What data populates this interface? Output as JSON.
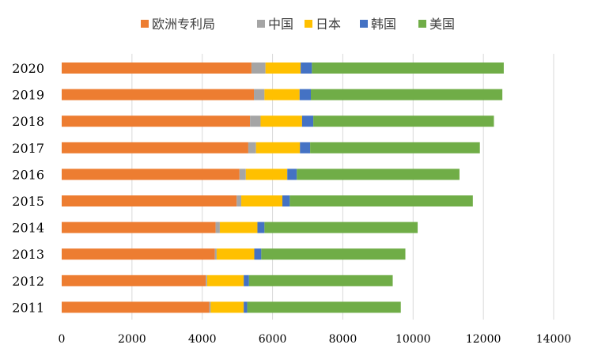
{
  "chart_data": {
    "type": "bar",
    "orientation": "horizontal",
    "stacked": true,
    "categories": [
      "2020",
      "2019",
      "2018",
      "2017",
      "2016",
      "2015",
      "2014",
      "2013",
      "2012",
      "2011"
    ],
    "series": [
      {
        "name": "欧洲专利局",
        "color": "#ed7d31",
        "values": [
          5400,
          5470,
          5360,
          5310,
          5060,
          4980,
          4380,
          4360,
          4100,
          4200
        ]
      },
      {
        "name": "中国",
        "color": "#a5a5a5",
        "values": [
          400,
          300,
          300,
          220,
          180,
          130,
          120,
          50,
          40,
          40
        ]
      },
      {
        "name": "日本",
        "color": "#ffc000",
        "values": [
          1000,
          1000,
          1180,
          1250,
          1180,
          1170,
          1070,
          1070,
          1040,
          940
        ]
      },
      {
        "name": "韩国",
        "color": "#4472c4",
        "values": [
          320,
          320,
          320,
          290,
          270,
          210,
          200,
          200,
          150,
          100
        ]
      },
      {
        "name": "美国",
        "color": "#70ad47",
        "values": [
          5460,
          5450,
          5140,
          4830,
          4630,
          5210,
          4360,
          4100,
          4090,
          4370
        ]
      }
    ],
    "xlim": [
      0,
      14000
    ],
    "xticks": [
      "0",
      "2000",
      "4000",
      "6000",
      "8000",
      "10000",
      "12000",
      "14000"
    ],
    "grid": "vertical",
    "legend_position": "top"
  }
}
